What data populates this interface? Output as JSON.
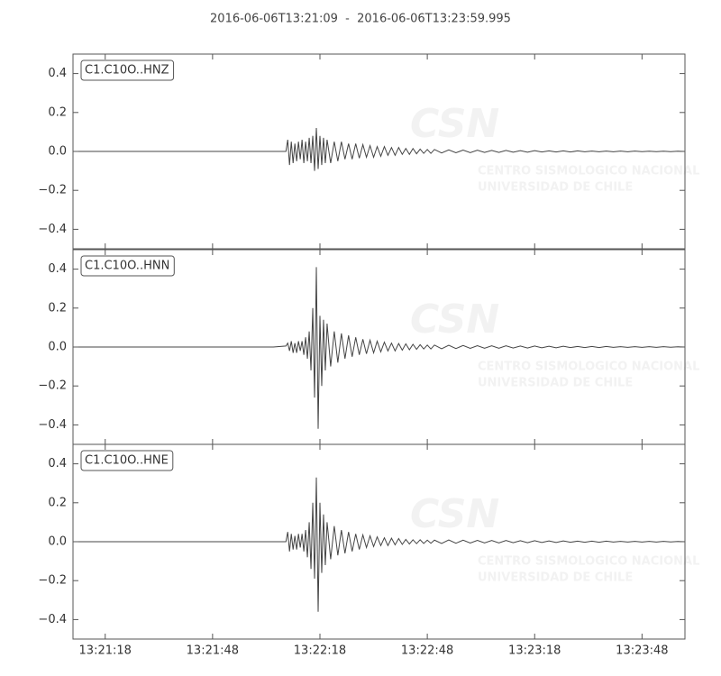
{
  "chart_data": {
    "type": "line",
    "title": "2016-06-06T13:21:09  -  2016-06-06T13:23:59.995",
    "watermark": [
      "CSN",
      "CENTRO SISMOLOGICO NACIONAL",
      "UNIVERSIDAD DE CHILE"
    ],
    "x": [
      48069,
      48100,
      48125,
      48128.5,
      48129,
      48129.5,
      48130,
      48130.5,
      48131,
      48131.5,
      48132,
      48132.5,
      48133,
      48133.5,
      48134,
      48134.5,
      48135,
      48135.5,
      48136,
      48136.5,
      48137,
      48137.5,
      48138,
      48138.5,
      48139,
      48139.5,
      48140,
      48141,
      48142,
      48143,
      48144,
      48145,
      48146,
      48147,
      48148,
      48149,
      48150,
      48151,
      48152,
      48153,
      48154,
      48155,
      48156,
      48157,
      48158,
      48159,
      48160,
      48161,
      48162,
      48163,
      48164,
      48165,
      48166,
      48167,
      48168,
      48169,
      48170,
      48172,
      48174,
      48176,
      48178,
      48180,
      48182,
      48184,
      48186,
      48188,
      48190,
      48192,
      48194,
      48196,
      48198,
      48200,
      48202,
      48204,
      48206,
      48208,
      48210,
      48212,
      48214,
      48216,
      48218,
      48220,
      48222,
      48224,
      48226,
      48228,
      48230,
      48232,
      48234,
      48236,
      48238,
      48239.995
    ],
    "xlim": [
      48069,
      48239.995
    ],
    "xticks": [
      {
        "value": 48078,
        "label": "13:21:18"
      },
      {
        "value": 48108,
        "label": "13:21:48"
      },
      {
        "value": 48138,
        "label": "13:22:18"
      },
      {
        "value": 48168,
        "label": "13:22:48"
      },
      {
        "value": 48198,
        "label": "13:23:18"
      },
      {
        "value": 48228,
        "label": "13:23:48"
      }
    ],
    "ylim": [
      -0.5,
      0.5
    ],
    "yticks": [
      {
        "value": -0.4,
        "label": "−0.4"
      },
      {
        "value": -0.2,
        "label": "−0.2"
      },
      {
        "value": 0,
        "label": "0.0"
      },
      0.2,
      0.4
    ],
    "series": [
      {
        "name": "C1.C10O..HNZ",
        "color": "#444444",
        "values": [
          0,
          0,
          0,
          0,
          0.06,
          -0.07,
          0.05,
          -0.06,
          0.04,
          -0.05,
          0.05,
          -0.04,
          0.06,
          -0.06,
          0.05,
          -0.05,
          0.07,
          -0.06,
          0.08,
          -0.1,
          0.12,
          -0.09,
          0.08,
          -0.07,
          0.07,
          -0.06,
          0.06,
          -0.06,
          0.05,
          -0.05,
          0.05,
          -0.04,
          0.04,
          -0.04,
          0.04,
          -0.035,
          0.035,
          -0.03,
          0.03,
          -0.03,
          0.025,
          -0.025,
          0.025,
          -0.02,
          0.02,
          -0.02,
          0.02,
          -0.015,
          0.015,
          -0.015,
          0.015,
          -0.012,
          0.012,
          -0.01,
          0.01,
          -0.01,
          0.01,
          -0.008,
          0.008,
          -0.007,
          0.007,
          -0.006,
          0.006,
          -0.005,
          0.005,
          -0.005,
          0.005,
          -0.004,
          0.004,
          -0.004,
          0.004,
          -0.003,
          0.003,
          -0.003,
          0.003,
          -0.003,
          0.003,
          -0.002,
          0.002,
          -0.002,
          0.002,
          -0.002,
          0.002,
          -0.002,
          0.002,
          -0.001,
          0.001,
          -0.001,
          0.001,
          -0.001,
          0.001,
          0
        ]
      },
      {
        "name": "C1.C10O..HNN",
        "color": "#444444",
        "values": [
          0,
          0,
          0,
          0.005,
          0.02,
          -0.02,
          0.03,
          -0.03,
          0.02,
          -0.03,
          0.03,
          -0.02,
          0.03,
          -0.04,
          0.05,
          -0.06,
          0.08,
          -0.12,
          0.2,
          -0.26,
          0.41,
          -0.42,
          0.16,
          -0.2,
          0.14,
          -0.12,
          0.12,
          -0.1,
          0.08,
          -0.08,
          0.07,
          -0.06,
          0.06,
          -0.05,
          0.05,
          -0.04,
          0.04,
          -0.035,
          0.035,
          -0.03,
          0.03,
          -0.025,
          0.025,
          -0.02,
          0.02,
          -0.02,
          0.018,
          -0.016,
          0.016,
          -0.014,
          0.014,
          -0.012,
          0.012,
          -0.01,
          0.01,
          -0.01,
          0.01,
          -0.009,
          0.009,
          -0.008,
          0.008,
          -0.007,
          0.007,
          -0.006,
          0.006,
          -0.006,
          0.006,
          -0.005,
          0.005,
          -0.005,
          0.005,
          -0.004,
          0.004,
          -0.004,
          0.004,
          -0.003,
          0.003,
          -0.003,
          0.003,
          -0.003,
          0.003,
          -0.002,
          0.002,
          -0.002,
          0.002,
          -0.002,
          0.002,
          -0.002,
          0.002,
          -0.001,
          0.001,
          0
        ]
      },
      {
        "name": "C1.C10O..HNE",
        "color": "#444444",
        "values": [
          0,
          0,
          0,
          0,
          0.05,
          -0.05,
          0.04,
          -0.04,
          0.03,
          -0.04,
          0.04,
          -0.03,
          0.04,
          -0.05,
          0.06,
          -0.08,
          0.1,
          -0.14,
          0.2,
          -0.19,
          0.33,
          -0.36,
          0.2,
          -0.16,
          0.14,
          -0.12,
          0.1,
          -0.09,
          0.08,
          -0.07,
          0.06,
          -0.06,
          0.05,
          -0.05,
          0.04,
          -0.04,
          0.035,
          -0.03,
          0.03,
          -0.025,
          0.025,
          -0.02,
          0.02,
          -0.02,
          0.018,
          -0.016,
          0.016,
          -0.014,
          0.012,
          -0.012,
          0.01,
          -0.01,
          0.01,
          -0.009,
          0.008,
          -0.008,
          0.008,
          -0.009,
          0.009,
          -0.008,
          0.008,
          -0.007,
          0.007,
          -0.006,
          0.006,
          -0.006,
          0.006,
          -0.005,
          0.005,
          -0.005,
          0.005,
          -0.004,
          0.004,
          -0.004,
          0.004,
          -0.003,
          0.003,
          -0.003,
          0.003,
          -0.003,
          0.003,
          -0.002,
          0.002,
          -0.002,
          0.002,
          -0.002,
          0.002,
          -0.002,
          0.002,
          -0.001,
          0.001,
          0
        ]
      }
    ]
  }
}
